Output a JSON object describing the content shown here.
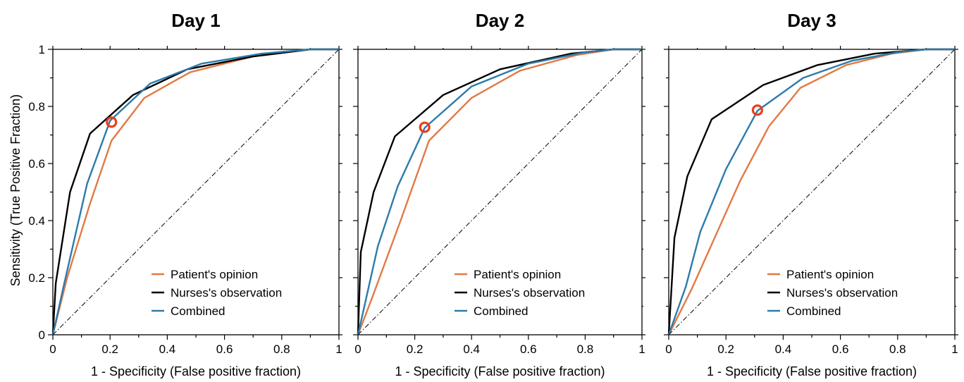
{
  "y_axis_label": "Sensitivity (True Positive Fraction)",
  "colors": {
    "Patient's opinion": "#e07a45",
    "Nurses's observation": "#000000",
    "Combined": "#2b7bab",
    "marker": "#e8401c"
  },
  "chart_data": [
    {
      "type": "line",
      "title": "Day 1",
      "xlabel": "1 - Specificity (False positive fraction)",
      "ylabel": "Sensitivity (True Positive Fraction)",
      "xlim": [
        0,
        1
      ],
      "ylim": [
        0,
        1
      ],
      "x_ticks": [
        "0",
        "0.2",
        "0.4",
        "0.6",
        "0.8",
        "1"
      ],
      "y_ticks": [
        "0",
        "0.2",
        "0.4",
        "0.6",
        "0.8",
        "1"
      ],
      "legend_position": "bottom-right",
      "series": [
        {
          "name": "Patient's opinion",
          "points": [
            [
              0,
              0
            ],
            [
              0.05,
              0.2
            ],
            [
              0.13,
              0.46
            ],
            [
              0.205,
              0.68
            ],
            [
              0.32,
              0.83
            ],
            [
              0.48,
              0.92
            ],
            [
              0.7,
              0.975
            ],
            [
              0.9,
              1.0
            ],
            [
              1,
              1
            ]
          ]
        },
        {
          "name": "Nurses's observation",
          "points": [
            [
              0,
              0
            ],
            [
              0.01,
              0.18
            ],
            [
              0.06,
              0.5
            ],
            [
              0.13,
              0.705
            ],
            [
              0.28,
              0.84
            ],
            [
              0.47,
              0.93
            ],
            [
              0.7,
              0.975
            ],
            [
              0.9,
              1.0
            ],
            [
              1,
              1
            ]
          ]
        },
        {
          "name": "Combined",
          "points": [
            [
              0,
              0
            ],
            [
              0.04,
              0.18
            ],
            [
              0.12,
              0.53
            ],
            [
              0.2,
              0.75
            ],
            [
              0.34,
              0.88
            ],
            [
              0.52,
              0.95
            ],
            [
              0.73,
              0.985
            ],
            [
              0.9,
              1.0
            ],
            [
              1,
              1
            ]
          ]
        },
        {
          "name": "",
          "points": [
            [
              0,
              0
            ],
            [
              1,
              1
            ]
          ]
        }
      ],
      "marker": {
        "x": 0.205,
        "y": 0.745
      }
    },
    {
      "type": "line",
      "title": "Day 2",
      "xlabel": "1 - Specificity (False positive fraction)",
      "ylabel": "",
      "xlim": [
        0,
        1
      ],
      "ylim": [
        0,
        1
      ],
      "x_ticks": [
        "0",
        "0.2",
        "0.4",
        "0.6",
        "0.8",
        "1"
      ],
      "y_ticks": [],
      "legend_position": "bottom-right",
      "series": [
        {
          "name": "Patient's opinion",
          "points": [
            [
              0,
              0
            ],
            [
              0.05,
              0.13
            ],
            [
              0.15,
              0.4
            ],
            [
              0.25,
              0.68
            ],
            [
              0.4,
              0.83
            ],
            [
              0.57,
              0.925
            ],
            [
              0.77,
              0.98
            ],
            [
              0.9,
              1.0
            ],
            [
              1,
              1
            ]
          ]
        },
        {
          "name": "Nurses's observation",
          "points": [
            [
              0,
              0
            ],
            [
              0.01,
              0.29
            ],
            [
              0.055,
              0.5
            ],
            [
              0.13,
              0.695
            ],
            [
              0.3,
              0.84
            ],
            [
              0.5,
              0.93
            ],
            [
              0.75,
              0.985
            ],
            [
              0.9,
              1.0
            ],
            [
              1,
              1
            ]
          ]
        },
        {
          "name": "Combined",
          "points": [
            [
              0,
              0
            ],
            [
              0.07,
              0.31
            ],
            [
              0.14,
              0.52
            ],
            [
              0.235,
              0.725
            ],
            [
              0.4,
              0.87
            ],
            [
              0.6,
              0.95
            ],
            [
              0.8,
              0.99
            ],
            [
              0.9,
              1.0
            ],
            [
              1,
              1
            ]
          ]
        },
        {
          "name": "",
          "points": [
            [
              0,
              0
            ],
            [
              1,
              1
            ]
          ]
        }
      ],
      "marker": {
        "x": 0.235,
        "y": 0.727
      }
    },
    {
      "type": "line",
      "title": "Day 3",
      "xlabel": "1 - Specificity (False positive fraction)",
      "ylabel": "",
      "xlim": [
        0,
        1
      ],
      "ylim": [
        0,
        1
      ],
      "x_ticks": [
        "0",
        "0.2",
        "0.4",
        "0.6",
        "0.8",
        "1"
      ],
      "y_ticks": [],
      "legend_position": "bottom-right",
      "series": [
        {
          "name": "Patient's opinion",
          "points": [
            [
              0,
              0
            ],
            [
              0.08,
              0.16
            ],
            [
              0.25,
              0.54
            ],
            [
              0.35,
              0.73
            ],
            [
              0.46,
              0.865
            ],
            [
              0.62,
              0.945
            ],
            [
              0.78,
              0.985
            ],
            [
              0.9,
              1.0
            ],
            [
              1,
              1
            ]
          ]
        },
        {
          "name": "Nurses's observation",
          "points": [
            [
              0,
              0
            ],
            [
              0.02,
              0.34
            ],
            [
              0.065,
              0.555
            ],
            [
              0.15,
              0.755
            ],
            [
              0.33,
              0.875
            ],
            [
              0.52,
              0.945
            ],
            [
              0.72,
              0.985
            ],
            [
              0.9,
              1.0
            ],
            [
              1,
              1
            ]
          ]
        },
        {
          "name": "Combined",
          "points": [
            [
              0,
              0
            ],
            [
              0.06,
              0.17
            ],
            [
              0.11,
              0.36
            ],
            [
              0.2,
              0.58
            ],
            [
              0.31,
              0.785
            ],
            [
              0.47,
              0.9
            ],
            [
              0.64,
              0.96
            ],
            [
              0.8,
              0.99
            ],
            [
              0.9,
              1.0
            ],
            [
              1,
              1
            ]
          ]
        },
        {
          "name": "",
          "points": [
            [
              0,
              0
            ],
            [
              1,
              1
            ]
          ]
        }
      ],
      "marker": {
        "x": 0.31,
        "y": 0.787
      }
    }
  ]
}
